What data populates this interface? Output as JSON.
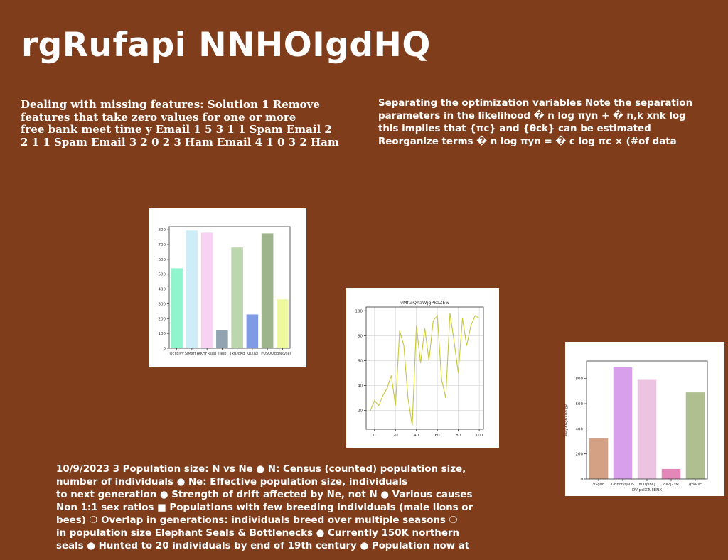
{
  "title": "rgRufapi NNHOIgdHQ",
  "text_left": [
    "Dealing with missing features: Solution 1 Remove",
    "features that take zero values for one or more",
    "free bank meet time y Email 1 5 3 1 1 Spam Email 2",
    "2 1 1 Spam Email 3 2 0 2 3 Ham Email 4 1 0 3 2 Ham"
  ],
  "text_right": [
    "Separating the optimization variables Note the separation",
    "parameters in the likelihood � n log πyn + � n,k xnk log",
    "this implies that {πc} and {θck} can be estimated",
    "Reorganize terms � n log πyn = � c log πc × (#of data"
  ],
  "text_bottom": [
    "10/9/2023 3 Population size: N vs Ne ● N: Census (counted) population size,",
    "number of individuals ● Ne: Effective population size, individuals",
    "to next generation ● Strength of drift affected by Ne, not N ● Various causes",
    "Non 1:1 sex ratios ■ Populations with few breeding individuals (male lions or",
    "bees) ❍ Overlap in generations: individuals breed over multiple seasons ❍",
    "in population size Elephant Seals & Bottlenecks ● Currently 150K northern",
    "seals ● Hunted to 20 individuals by end of 19th century ● Population now at"
  ],
  "chart_data": [
    {
      "type": "bar",
      "title": "",
      "categories": [
        "QcYElvy",
        "SiMxrFR",
        "RKHFRsud",
        "Tjejp",
        "TxtDoKq",
        "KpXIZi",
        "PUSOQ",
        "gBNkvsei"
      ],
      "values": [
        540,
        795,
        780,
        120,
        680,
        228,
        775,
        330
      ],
      "colors": [
        "#8ff5cc",
        "#cdeef9",
        "#f8d2f3",
        "#8fa3b0",
        "#bcd6ad",
        "#7f9be6",
        "#9db48c",
        "#eef89f"
      ],
      "ylim": [
        0,
        820
      ],
      "yticks": [
        0,
        100,
        200,
        300,
        400,
        500,
        600,
        700,
        800
      ],
      "xlabel": "",
      "ylabel": ""
    },
    {
      "type": "line",
      "title": "vMfuiQhaWjgPkaZEw",
      "x": [
        -4,
        0,
        4,
        8,
        12,
        16,
        20,
        24,
        28,
        32,
        36,
        40,
        44,
        48,
        52,
        56,
        60,
        64,
        68,
        72,
        76,
        80,
        84,
        88,
        92,
        96,
        100
      ],
      "y": [
        20,
        28,
        24,
        32,
        38,
        48,
        24,
        84,
        72,
        30,
        8,
        88,
        58,
        86,
        60,
        92,
        96,
        45,
        30,
        98,
        75,
        50,
        94,
        72,
        88,
        96,
        94
      ],
      "color": "#c8c83a",
      "xlim": [
        -8,
        104
      ],
      "ylim": [
        5,
        103
      ],
      "xticks": [
        0,
        20,
        40,
        60,
        80,
        100
      ],
      "yticks": [
        20,
        40,
        60,
        80,
        100
      ],
      "grid": true,
      "xlabel": "",
      "ylabel": ""
    },
    {
      "type": "bar",
      "title": "",
      "categories": [
        "VSgdE",
        "GHndfyqaQS",
        "mXqVBKj",
        "qeZjZzM",
        "gxkRxc"
      ],
      "values": [
        325,
        890,
        790,
        80,
        690
      ],
      "colors": [
        "#d4a185",
        "#d8a0ec",
        "#ecc3e0",
        "#e287b7",
        "#afbf8f"
      ],
      "ylim": [
        0,
        940
      ],
      "yticks": [
        0,
        200,
        400,
        600,
        800
      ],
      "xlabel": "DV pcIXTuIlENX",
      "ylabel": "ewyXBghXhd gP"
    }
  ]
}
